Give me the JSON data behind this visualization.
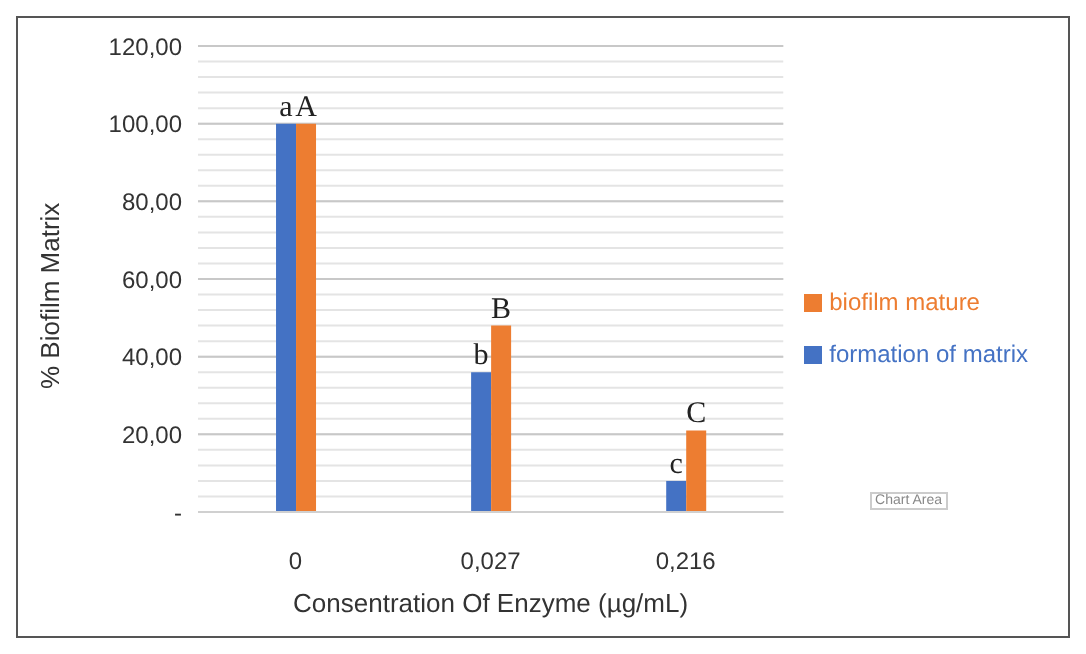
{
  "chart_data": {
    "type": "bar",
    "xlabel": "Consentration Of Enzyme (µg/mL)",
    "ylabel": "% Biofilm Matrix",
    "categories": [
      "0",
      "0,027",
      "0,216"
    ],
    "series": [
      {
        "name": "formation of matrix",
        "color": "#4472c4",
        "values": [
          100,
          36,
          8
        ]
      },
      {
        "name": "biofilm mature",
        "color": "#ed7d31",
        "values": [
          100,
          48,
          21
        ]
      }
    ],
    "ylim": [
      0,
      120
    ],
    "yticks": [
      {
        "value": 0,
        "label": "-"
      },
      {
        "value": 4,
        "label": null
      },
      {
        "value": 8,
        "label": null
      },
      {
        "value": 12,
        "label": null
      },
      {
        "value": 16,
        "label": null
      },
      {
        "value": 20,
        "label": "20,00"
      },
      {
        "value": 24,
        "label": null
      },
      {
        "value": 28,
        "label": null
      },
      {
        "value": 32,
        "label": null
      },
      {
        "value": 36,
        "label": null
      },
      {
        "value": 40,
        "label": "40,00"
      },
      {
        "value": 44,
        "label": null
      },
      {
        "value": 48,
        "label": null
      },
      {
        "value": 52,
        "label": null
      },
      {
        "value": 56,
        "label": null
      },
      {
        "value": 60,
        "label": "60,00"
      },
      {
        "value": 64,
        "label": null
      },
      {
        "value": 68,
        "label": null
      },
      {
        "value": 72,
        "label": null
      },
      {
        "value": 76,
        "label": null
      },
      {
        "value": 80,
        "label": "80,00"
      },
      {
        "value": 84,
        "label": null
      },
      {
        "value": 88,
        "label": null
      },
      {
        "value": 92,
        "label": null
      },
      {
        "value": 96,
        "label": null
      },
      {
        "value": 100,
        "label": "100,00"
      },
      {
        "value": 104,
        "label": null
      },
      {
        "value": 108,
        "label": null
      },
      {
        "value": 112,
        "label": null
      },
      {
        "value": 116,
        "label": null
      },
      {
        "value": 120,
        "label": "120,00"
      }
    ],
    "grid": "y",
    "legend": "right",
    "annotations": [
      {
        "text": "a",
        "x": "0",
        "y": 100
      },
      {
        "text": "A",
        "x": "0",
        "y": 100
      },
      {
        "text": "b",
        "x": "0,027",
        "y": 36
      },
      {
        "text": "B",
        "x": "0,027",
        "y": 48
      },
      {
        "text": "c",
        "x": "0,216",
        "y": 8
      },
      {
        "text": "C",
        "x": "0,216",
        "y": 21
      },
      "Chart Area"
    ]
  }
}
